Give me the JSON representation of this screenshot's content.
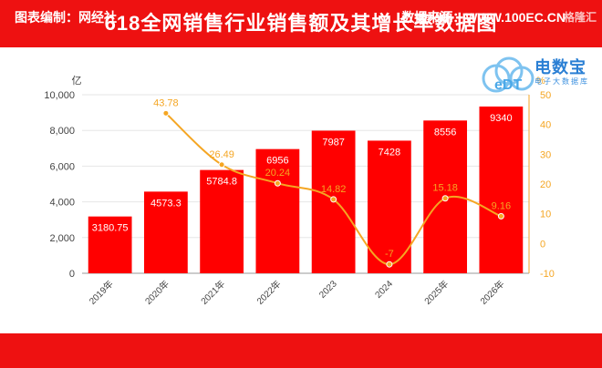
{
  "header": {
    "title": "618全网销售行业销售额及其增长率数据图"
  },
  "footer": {
    "left": "图表编制：网经社",
    "right": "数据来源：WWW.100EC.CN",
    "watermark": "格隆汇"
  },
  "logo": {
    "name": "电数宝",
    "subtitle": "电子大数据库"
  },
  "chart_data": {
    "type": "bar",
    "categories": [
      "2019年",
      "2020年",
      "2021年",
      "2022年",
      "2023",
      "2024",
      "2025年",
      "2026年"
    ],
    "series": [
      {
        "values": [
          3180.75,
          4573.3,
          5784.8,
          6956,
          7987,
          7428,
          8556,
          9340
        ],
        "labels": [
          "3180.75",
          "4573.3",
          "5784.8",
          "6956",
          "7987",
          "7428",
          "8556",
          "9340"
        ],
        "color": "#ff0000",
        "axis": "left"
      },
      {
        "type": "line",
        "values": [
          null,
          43.78,
          26.49,
          20.24,
          14.82,
          -7,
          15.18,
          9.16
        ],
        "labels": [
          "",
          "43.78",
          "26.49",
          "20.24",
          "14.82",
          "-7",
          "15.18",
          "9.16"
        ],
        "color": "#f5a623",
        "axis": "right"
      }
    ],
    "y_left": {
      "unit": "亿",
      "min": 0,
      "max": 10000,
      "ticks": [
        "0",
        "2,000",
        "4,000",
        "6,000",
        "8,000",
        "10,000"
      ]
    },
    "y_right": {
      "unit": "%",
      "min": -10,
      "max": 50,
      "ticks": [
        "-10",
        "0",
        "10",
        "20",
        "30",
        "40",
        "50"
      ]
    },
    "grid": true
  }
}
